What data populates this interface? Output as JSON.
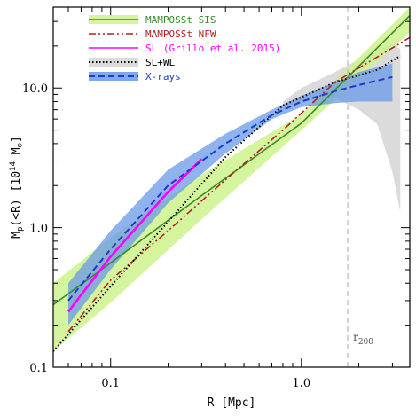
{
  "chart_data": {
    "type": "line",
    "title": "",
    "xlabel": "R [Mpc]",
    "ylabel": "M_p(<R) [10^14 M_⊙]",
    "xscale": "log",
    "yscale": "log",
    "xlim": [
      0.05,
      3.7
    ],
    "ylim": [
      0.1,
      38
    ],
    "xticks": [
      {
        "value": 0.1,
        "label": "0.1"
      },
      {
        "value": 1.0,
        "label": "1.0"
      }
    ],
    "yticks": [
      {
        "value": 0.1,
        "label": "0.1"
      },
      {
        "value": 1.0,
        "label": "1.0"
      },
      {
        "value": 10.0,
        "label": "10.0"
      }
    ],
    "legend_position": "top-left",
    "vline": {
      "x": 1.75,
      "label": "r",
      "label_sub": "200",
      "color": "#aaaaaa"
    },
    "series": [
      {
        "name": "MAMPOSSt SIS",
        "style": "solid",
        "color": "#3a8a2a",
        "band_color": "#ccf28c",
        "x": [
          0.05,
          0.1,
          0.3,
          1.0,
          3.7
        ],
        "y": [
          0.28,
          0.56,
          1.7,
          5.6,
          33
        ],
        "band_low": [
          0.13,
          0.29,
          1.15,
          5.0,
          25
        ],
        "band_high": [
          0.4,
          0.85,
          2.4,
          6.5,
          38
        ]
      },
      {
        "name": "MAMPOSSt NFW",
        "style": "dash-dot-dot",
        "color": "#b22222",
        "x": [
          0.06,
          0.1,
          0.2,
          0.4,
          0.8,
          1.5,
          3.7
        ],
        "y": [
          0.18,
          0.42,
          0.95,
          2.2,
          5.0,
          11.0,
          23
        ]
      },
      {
        "name": "SL (Grillo et al. 2015)",
        "style": "solid",
        "color": "#ff00ff",
        "band_color": "#ff00ff",
        "x": [
          0.06,
          0.1,
          0.2,
          0.3
        ],
        "y": [
          0.25,
          0.62,
          1.8,
          3.1
        ]
      },
      {
        "name": "SL+WL",
        "style": "dotted",
        "color": "#000000",
        "band_color": "#cccccc",
        "x": [
          0.05,
          0.1,
          0.2,
          0.4,
          0.8,
          1.5,
          2.5,
          3.3
        ],
        "y": [
          0.13,
          0.38,
          1.1,
          3.2,
          7.5,
          11.0,
          13.5,
          17.0
        ],
        "band_x": [
          0.8,
          1.0,
          1.5,
          2.0,
          2.5,
          3.0,
          3.3
        ],
        "band_low": [
          7.0,
          8.0,
          8.5,
          7.0,
          5.5,
          2.5,
          1.3
        ],
        "band_high": [
          8.0,
          10.0,
          13.0,
          16.0,
          19.0,
          21.0,
          19.0
        ]
      },
      {
        "name": "X-rays",
        "style": "dashed",
        "color": "#1a3ccc",
        "band_color": "#6a9ae8",
        "x": [
          0.06,
          0.1,
          0.2,
          0.4,
          0.7,
          1.0,
          1.5,
          2.0,
          3.0
        ],
        "y": [
          0.3,
          0.7,
          2.0,
          4.0,
          6.4,
          8.0,
          9.5,
          10.5,
          12.0
        ],
        "band_low": [
          0.2,
          0.5,
          1.5,
          3.4,
          6.0,
          7.3,
          7.8,
          8.0,
          8.0
        ],
        "band_high": [
          0.4,
          0.95,
          2.6,
          4.7,
          7.0,
          8.8,
          11.0,
          13.0,
          15.0
        ]
      }
    ]
  }
}
